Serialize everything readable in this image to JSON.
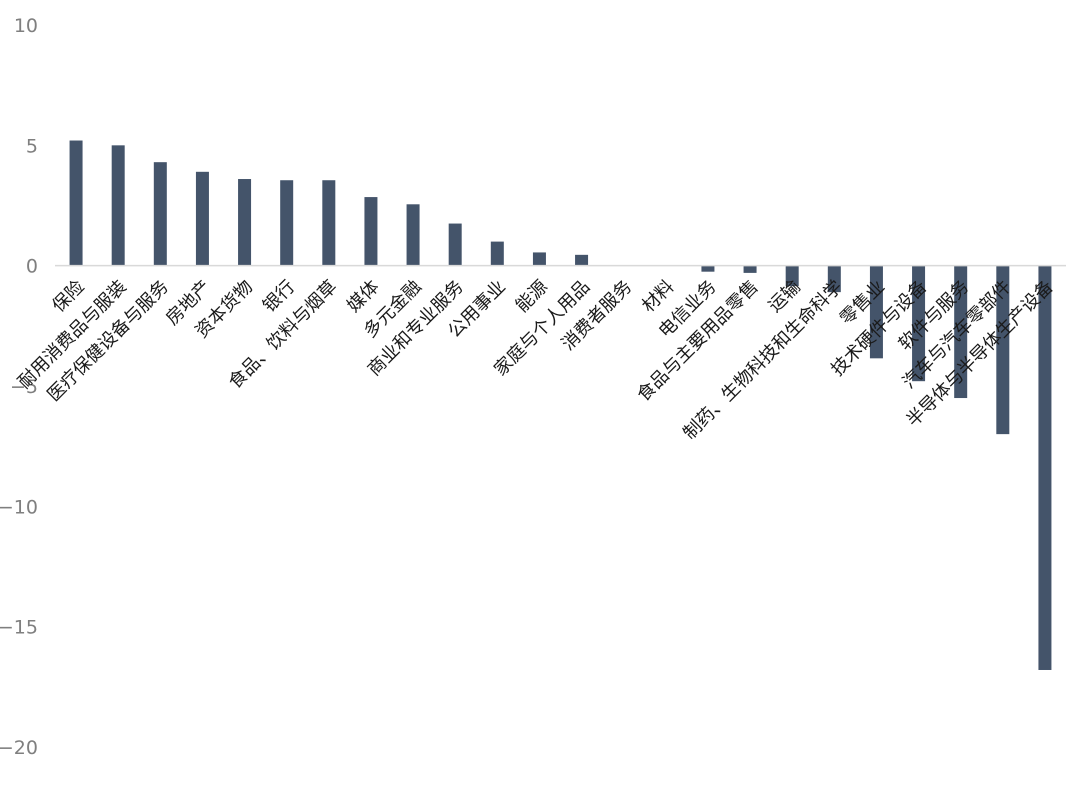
{
  "chart_data": {
    "type": "bar",
    "title": "",
    "xlabel": "",
    "ylabel": "",
    "ylim": [
      -20,
      10
    ],
    "yticks": [
      10,
      5,
      0,
      -5,
      -10,
      -15,
      -20
    ],
    "grid": false,
    "bar_color": "#44546a",
    "axis_color": "#d9d9d9",
    "categories": [
      "保险",
      "耐用消费品与服装",
      "医疗保健设备与服务",
      "房地产",
      "资本货物",
      "银行",
      "食品、饮料与烟草",
      "媒体",
      "多元金融",
      "商业和专业服务",
      "公用事业",
      "能源",
      "家庭与个人用品",
      "消费者服务",
      "材料",
      "电信业务",
      "食品与主要用品零售",
      "运输",
      "制药、生物科技和生命科学",
      "零售业",
      "技术硬件与设备",
      "软件与服务",
      "汽车与汽车零部件",
      "半导体与半导体生产设备"
    ],
    "values": [
      5.2,
      5.0,
      4.3,
      3.9,
      3.6,
      3.55,
      3.55,
      2.85,
      2.55,
      1.75,
      1.0,
      0.55,
      0.45,
      0.0,
      0.0,
      -0.25,
      -0.3,
      -0.85,
      -1.1,
      -3.85,
      -4.8,
      -5.5,
      -7.0,
      -16.8
    ]
  }
}
